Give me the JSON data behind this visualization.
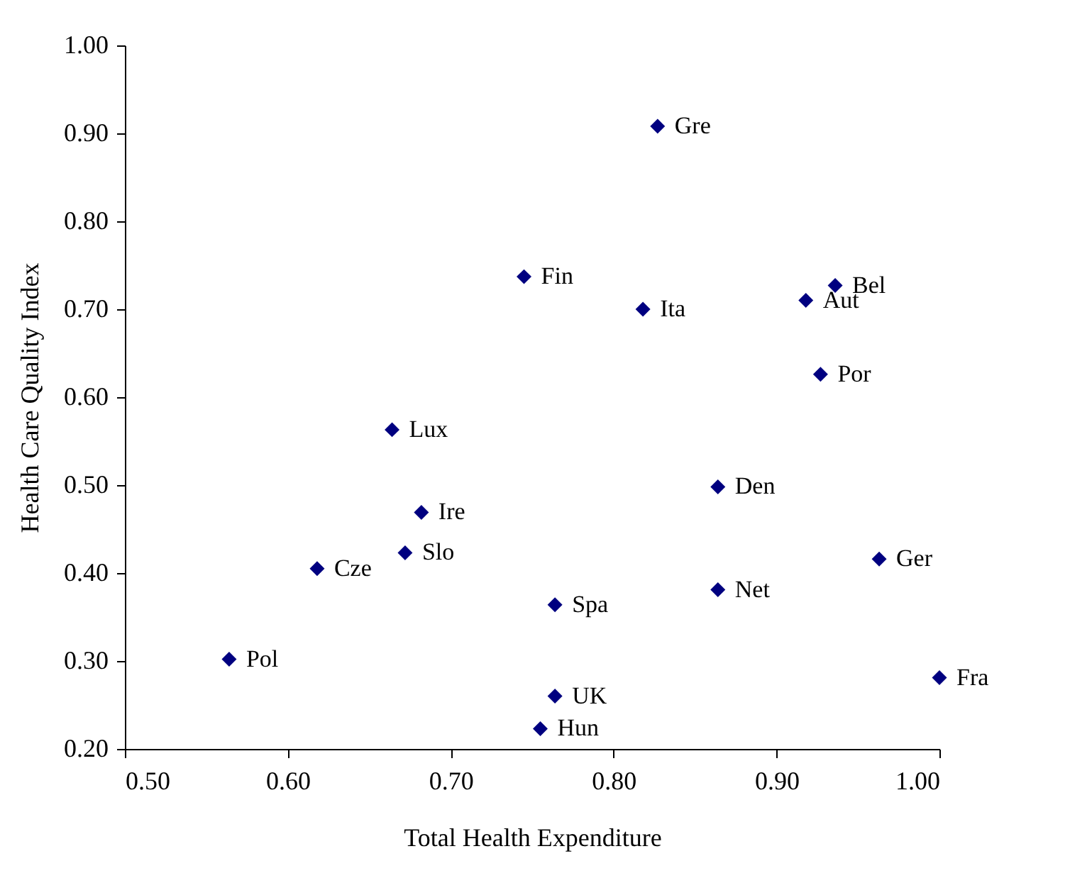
{
  "chart_data": {
    "type": "scatter",
    "xlabel": "Total Health Expenditure",
    "ylabel": "Health Care Quality Index",
    "x": [
      0.827,
      0.745,
      0.818,
      0.918,
      0.936,
      0.927,
      0.664,
      0.864,
      0.682,
      0.672,
      0.618,
      0.764,
      0.864,
      0.963,
      0.564,
      0.764,
      0.755,
      1.0
    ],
    "series": [
      {
        "color": "#000080",
        "values": [
          0.908,
          0.737,
          0.7,
          0.71,
          0.727,
          0.626,
          0.563,
          0.498,
          0.469,
          0.423,
          0.405,
          0.364,
          0.381,
          0.416,
          0.302,
          0.26,
          0.223,
          0.281
        ]
      }
    ],
    "annotations": [
      {
        "text": "Gre",
        "x": 0.827,
        "y": 0.908
      },
      {
        "text": "Fin",
        "x": 0.745,
        "y": 0.737
      },
      {
        "text": "Ita",
        "x": 0.818,
        "y": 0.7
      },
      {
        "text": "Aut",
        "x": 0.918,
        "y": 0.71
      },
      {
        "text": "Bel",
        "x": 0.936,
        "y": 0.727
      },
      {
        "text": "Por",
        "x": 0.927,
        "y": 0.626
      },
      {
        "text": "Lux",
        "x": 0.664,
        "y": 0.563
      },
      {
        "text": "Den",
        "x": 0.864,
        "y": 0.498
      },
      {
        "text": "Ire",
        "x": 0.682,
        "y": 0.469
      },
      {
        "text": "Slo",
        "x": 0.672,
        "y": 0.423
      },
      {
        "text": "Cze",
        "x": 0.618,
        "y": 0.405
      },
      {
        "text": "Spa",
        "x": 0.764,
        "y": 0.364
      },
      {
        "text": "Net",
        "x": 0.864,
        "y": 0.381
      },
      {
        "text": "Ger",
        "x": 0.963,
        "y": 0.416
      },
      {
        "text": "Pol",
        "x": 0.564,
        "y": 0.302
      },
      {
        "text": "UK",
        "x": 0.764,
        "y": 0.26
      },
      {
        "text": "Hun",
        "x": 0.755,
        "y": 0.223
      },
      {
        "text": "Fra",
        "x": 1.0,
        "y": 0.281
      }
    ],
    "xlim": [
      0.5,
      1.0
    ],
    "xticks": [
      {
        "value": 0.5,
        "label": "0.50"
      },
      {
        "value": 0.6,
        "label": "0.60"
      },
      {
        "value": 0.7,
        "label": "0.70"
      },
      {
        "value": 0.8,
        "label": "0.80"
      },
      {
        "value": 0.9,
        "label": "0.90"
      },
      {
        "value": 1.0,
        "label": "1.00"
      }
    ],
    "ylim": [
      0.2,
      1.0
    ],
    "yticks": [
      {
        "value": 0.2,
        "label": "0.20"
      },
      {
        "value": 0.3,
        "label": "0.30"
      },
      {
        "value": 0.4,
        "label": "0.40"
      },
      {
        "value": 0.5,
        "label": "0.50"
      },
      {
        "value": 0.6,
        "label": "0.60"
      },
      {
        "value": 0.7,
        "label": "0.70"
      },
      {
        "value": 0.8,
        "label": "0.80"
      },
      {
        "value": 0.9,
        "label": "0.90"
      },
      {
        "value": 1.0,
        "label": "1.00"
      }
    ],
    "marker": "diamond",
    "grid": false
  }
}
